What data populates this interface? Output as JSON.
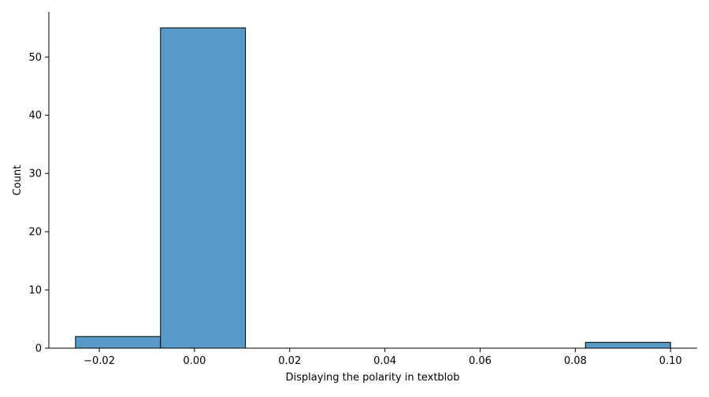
{
  "chart_data": {
    "type": "bar",
    "subtype": "histogram",
    "xlabel": "Displaying the polarity in textblob",
    "ylabel": "Count",
    "xlim": [
      -0.0306,
      0.1056
    ],
    "ylim": [
      0,
      57.75
    ],
    "x_ticks": [
      {
        "value": -0.02,
        "label": "−0.02"
      },
      {
        "value": 0.0,
        "label": "0.00"
      },
      {
        "value": 0.02,
        "label": "0.02"
      },
      {
        "value": 0.04,
        "label": "0.04"
      },
      {
        "value": 0.06,
        "label": "0.06"
      },
      {
        "value": 0.08,
        "label": "0.08"
      },
      {
        "value": 0.1,
        "label": "0.10"
      }
    ],
    "y_ticks": [
      {
        "value": 0,
        "label": "0"
      },
      {
        "value": 10,
        "label": "10"
      },
      {
        "value": 20,
        "label": "20"
      },
      {
        "value": 30,
        "label": "30"
      },
      {
        "value": 40,
        "label": "40"
      },
      {
        "value": 50,
        "label": "50"
      }
    ],
    "bins": [
      {
        "start": -0.025,
        "end": -0.00714,
        "count": 2
      },
      {
        "start": -0.00714,
        "end": 0.01071,
        "count": 55
      },
      {
        "start": 0.01071,
        "end": 0.02857,
        "count": 0
      },
      {
        "start": 0.02857,
        "end": 0.04643,
        "count": 0
      },
      {
        "start": 0.04643,
        "end": 0.06429,
        "count": 0
      },
      {
        "start": 0.06429,
        "end": 0.08214,
        "count": 0
      },
      {
        "start": 0.08214,
        "end": 0.1,
        "count": 1
      }
    ],
    "grid": false,
    "legend": "none",
    "bar_color": "#5799c7",
    "edge_color": "#000000"
  }
}
